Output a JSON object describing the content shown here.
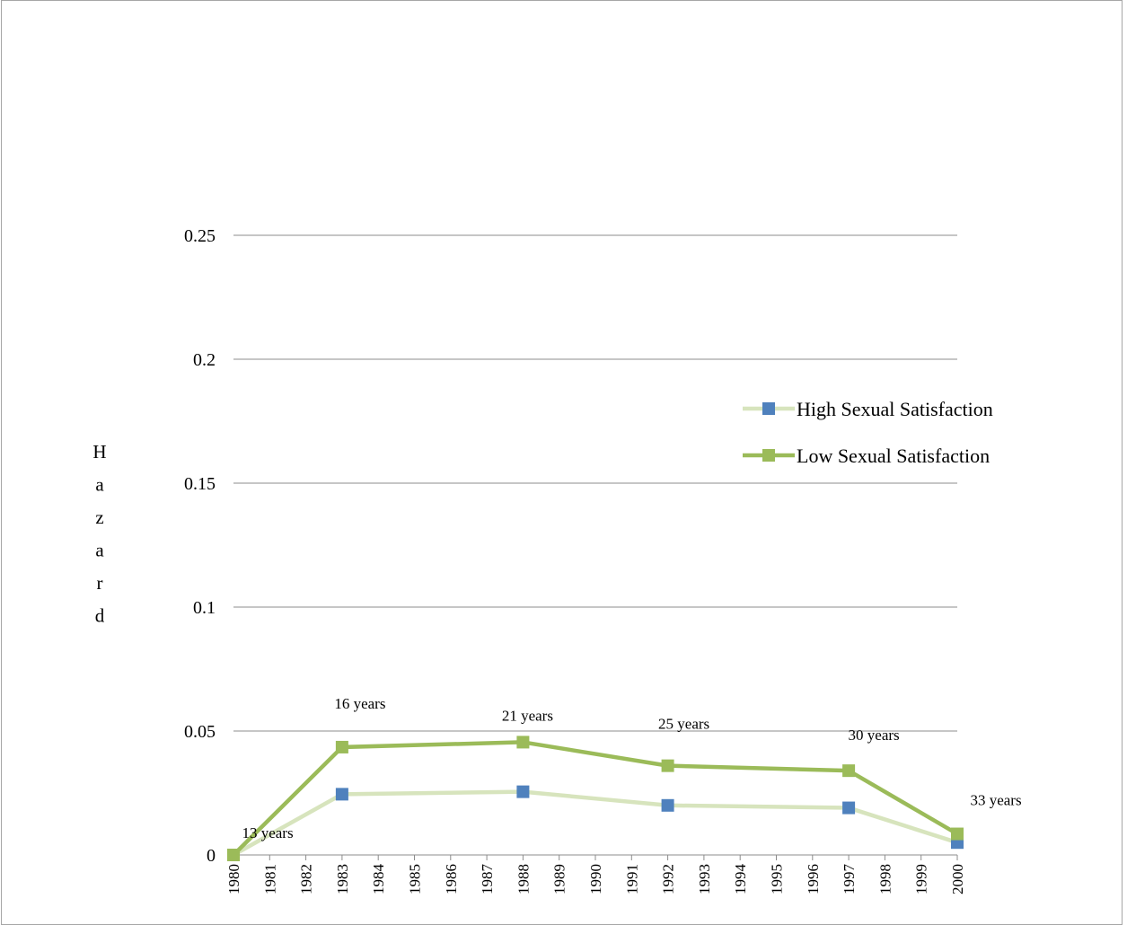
{
  "chart_data": {
    "type": "line",
    "categories": [
      "1980",
      "1981",
      "1982",
      "1983",
      "1984",
      "1985",
      "1986",
      "1987",
      "1988",
      "1989",
      "1990",
      "1991",
      "1992",
      "1993",
      "1994",
      "1995",
      "1996",
      "1997",
      "1998",
      "1999",
      "2000"
    ],
    "ylabel": "Hazard",
    "ylim": [
      0,
      0.25
    ],
    "yticks": [
      "0",
      "0.05",
      "0.1",
      "0.15",
      "0.2",
      "0.25"
    ],
    "grid": true,
    "legend_position": "right",
    "series": [
      {
        "name": "High Sexual Satisfaction",
        "line_color": "#d7e4bd",
        "marker_color": "#4f81bd",
        "points": [
          {
            "x": "1980",
            "y": 0
          },
          {
            "x": "1983",
            "y": 0.0245
          },
          {
            "x": "1988",
            "y": 0.0255
          },
          {
            "x": "1992",
            "y": 0.02
          },
          {
            "x": "1997",
            "y": 0.019
          },
          {
            "x": "2000",
            "y": 0.005
          }
        ]
      },
      {
        "name": "Low Sexual Satisfaction",
        "line_color": "#9bbb59",
        "marker_color": "#9bbb59",
        "points": [
          {
            "x": "1980",
            "y": 0
          },
          {
            "x": "1983",
            "y": 0.0435
          },
          {
            "x": "1988",
            "y": 0.0455
          },
          {
            "x": "1992",
            "y": 0.036
          },
          {
            "x": "1997",
            "y": 0.034
          },
          {
            "x": "2000",
            "y": 0.0085
          }
        ]
      }
    ],
    "annotations": [
      {
        "text": "13 years",
        "x": "1980"
      },
      {
        "text": "16 years",
        "x": "1983"
      },
      {
        "text": "21 years",
        "x": "1988"
      },
      {
        "text": "25 years",
        "x": "1992"
      },
      {
        "text": "30 years",
        "x": "1997"
      },
      {
        "text": "33 years",
        "x": "2000"
      }
    ]
  }
}
